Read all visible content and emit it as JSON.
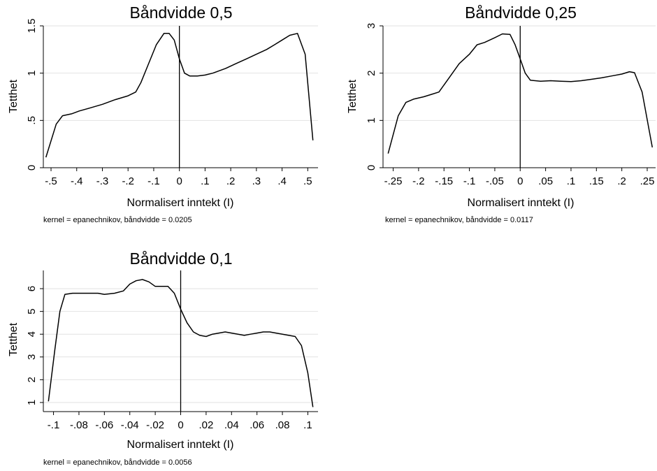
{
  "chart_data": [
    {
      "type": "line",
      "title": "Båndvidde 0,5",
      "xlabel": "Normalisert inntekt (I)",
      "ylabel": "Tetthet",
      "note": "kernel = epanechnikov, båndvidde = 0.0205",
      "xlim": [
        -0.53,
        0.54
      ],
      "ylim": [
        0,
        1.5
      ],
      "xticks": [
        -0.5,
        -0.4,
        -0.3,
        -0.2,
        -0.1,
        0,
        0.1,
        0.2,
        0.3,
        0.4,
        0.5
      ],
      "xtick_labels": [
        "-.5",
        "-.4",
        "-.3",
        "-.2",
        "-.1",
        "0",
        ".1",
        ".2",
        ".3",
        ".4",
        ".5"
      ],
      "yticks": [
        0,
        0.5,
        1,
        1.5
      ],
      "ytick_labels": [
        "0",
        ".5",
        "1",
        "1.5"
      ],
      "vline": 0,
      "grid": true,
      "x": [
        -0.52,
        -0.48,
        -0.455,
        -0.42,
        -0.39,
        -0.35,
        -0.3,
        -0.25,
        -0.2,
        -0.17,
        -0.15,
        -0.12,
        -0.09,
        -0.06,
        -0.04,
        -0.02,
        0,
        0.02,
        0.04,
        0.07,
        0.1,
        0.13,
        0.18,
        0.22,
        0.26,
        0.3,
        0.34,
        0.37,
        0.4,
        0.43,
        0.46,
        0.49,
        0.52
      ],
      "y": [
        0.11,
        0.46,
        0.55,
        0.57,
        0.6,
        0.63,
        0.67,
        0.72,
        0.76,
        0.8,
        0.9,
        1.1,
        1.3,
        1.42,
        1.42,
        1.35,
        1.15,
        1.0,
        0.97,
        0.97,
        0.98,
        1.0,
        1.05,
        1.1,
        1.15,
        1.2,
        1.25,
        1.3,
        1.35,
        1.4,
        1.42,
        1.2,
        0.29
      ]
    },
    {
      "type": "line",
      "title": "Båndvidde 0,25",
      "xlabel": "Normalisert inntekt (I)",
      "ylabel": "Tetthet",
      "note": "kernel = epanechnikov, båndvidde = 0.0117",
      "xlim": [
        -0.27,
        0.272
      ],
      "ylim": [
        0,
        3
      ],
      "xticks": [
        -0.25,
        -0.2,
        -0.15,
        -0.1,
        -0.05,
        0,
        0.05,
        0.1,
        0.15,
        0.2,
        0.25
      ],
      "xtick_labels": [
        "-.25",
        "-.2",
        "-.15",
        "-.1",
        "-.05",
        "0",
        ".05",
        ".1",
        ".15",
        ".2",
        ".25"
      ],
      "yticks": [
        0,
        1,
        2,
        3
      ],
      "ytick_labels": [
        "0",
        "1",
        "2",
        "3"
      ],
      "vline": 0,
      "grid": true,
      "x": [
        -0.26,
        -0.24,
        -0.225,
        -0.21,
        -0.19,
        -0.175,
        -0.16,
        -0.14,
        -0.12,
        -0.1,
        -0.085,
        -0.07,
        -0.05,
        -0.035,
        -0.02,
        -0.01,
        0,
        0.01,
        0.02,
        0.04,
        0.06,
        0.08,
        0.1,
        0.12,
        0.14,
        0.16,
        0.18,
        0.2,
        0.215,
        0.225,
        0.24,
        0.26
      ],
      "y": [
        0.3,
        1.1,
        1.38,
        1.45,
        1.5,
        1.55,
        1.6,
        1.9,
        2.2,
        2.4,
        2.6,
        2.65,
        2.75,
        2.83,
        2.82,
        2.6,
        2.3,
        2.0,
        1.85,
        1.83,
        1.84,
        1.83,
        1.82,
        1.84,
        1.87,
        1.9,
        1.94,
        1.98,
        2.03,
        2.01,
        1.6,
        0.43
      ]
    },
    {
      "type": "line",
      "title": "Båndvidde 0,1",
      "xlabel": "Normalisert inntekt (I)",
      "ylabel": "Tetthet",
      "note": "kernel = epanechnikov, båndvidde = 0.0056",
      "xlim": [
        -0.108,
        0.108
      ],
      "ylim": [
        0.6,
        6.8
      ],
      "xticks": [
        -0.1,
        -0.08,
        -0.06,
        -0.04,
        -0.02,
        0,
        0.02,
        0.04,
        0.06,
        0.08,
        0.1
      ],
      "xtick_labels": [
        "-.1",
        "-.08",
        "-.06",
        "-.04",
        "-.02",
        "0",
        ".02",
        ".04",
        ".06",
        ".08",
        ".1"
      ],
      "yticks": [
        1,
        2,
        3,
        4,
        5,
        6
      ],
      "ytick_labels": [
        "1",
        "2",
        "3",
        "4",
        "5",
        "6"
      ],
      "vline": 0,
      "grid": true,
      "x": [
        -0.104,
        -0.099,
        -0.095,
        -0.091,
        -0.085,
        -0.075,
        -0.065,
        -0.06,
        -0.052,
        -0.045,
        -0.04,
        -0.035,
        -0.03,
        -0.025,
        -0.02,
        -0.015,
        -0.01,
        -0.005,
        0,
        0.005,
        0.01,
        0.015,
        0.02,
        0.025,
        0.03,
        0.035,
        0.04,
        0.045,
        0.05,
        0.055,
        0.06,
        0.065,
        0.07,
        0.075,
        0.08,
        0.085,
        0.09,
        0.095,
        0.1,
        0.104
      ],
      "y": [
        1.05,
        3.3,
        5.0,
        5.75,
        5.8,
        5.8,
        5.8,
        5.75,
        5.8,
        5.9,
        6.2,
        6.35,
        6.4,
        6.3,
        6.1,
        6.1,
        6.1,
        5.8,
        5.1,
        4.5,
        4.1,
        3.95,
        3.9,
        4.0,
        4.05,
        4.1,
        4.05,
        4.0,
        3.95,
        4.0,
        4.05,
        4.1,
        4.1,
        4.05,
        4.0,
        3.95,
        3.9,
        3.5,
        2.3,
        0.8
      ]
    }
  ]
}
